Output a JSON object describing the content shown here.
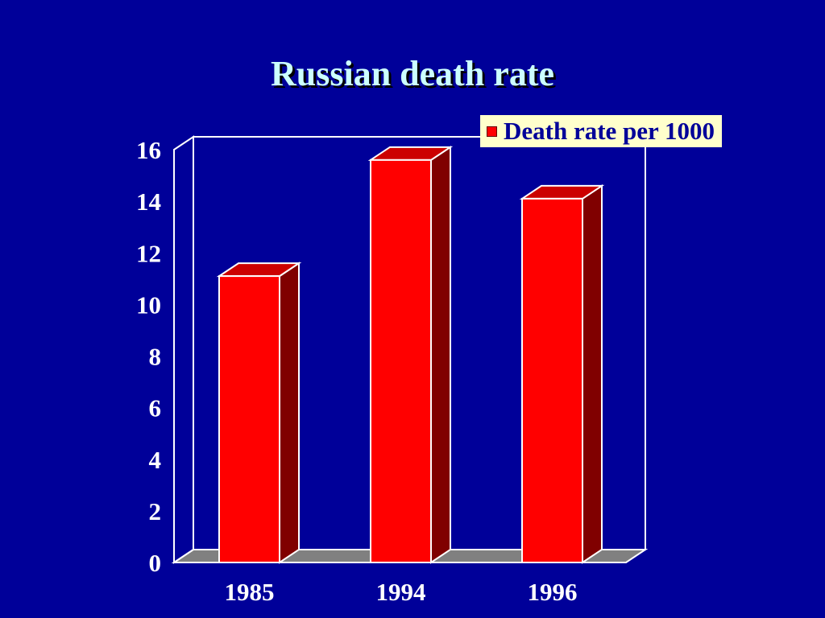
{
  "slide": {
    "title": "Russian death rate"
  },
  "colors": {
    "background": "#000099",
    "title": "#ccffff",
    "bar_front": "#ff0000",
    "bar_side": "#800000",
    "bar_top": "#cc0000",
    "floor": "#808080",
    "axis": "#ffffff",
    "legend_bg": "#ffffcc",
    "legend_text": "#000099"
  },
  "chart_data": {
    "type": "bar",
    "title": "Russian death rate",
    "categories": [
      "1985",
      "1994",
      "1996"
    ],
    "series": [
      {
        "name": "Death rate per 1000",
        "values": [
          11.1,
          15.6,
          14.1
        ]
      }
    ],
    "ylim": [
      0,
      16
    ],
    "yticks": [
      "0",
      "2",
      "4",
      "6",
      "8",
      "10",
      "12",
      "14",
      "16"
    ],
    "style": "3d",
    "grid": false,
    "legend": "top-right"
  }
}
